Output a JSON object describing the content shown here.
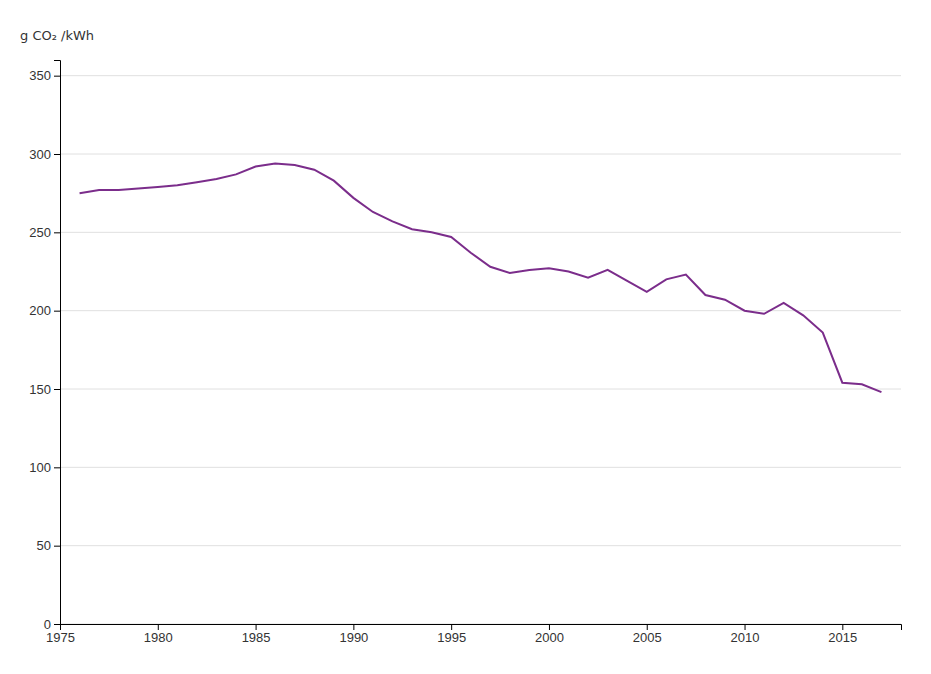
{
  "chart_data": {
    "type": "line",
    "ylabel": "g CO₂ /kWh",
    "x": [
      1976,
      1977,
      1978,
      1979,
      1980,
      1981,
      1982,
      1983,
      1984,
      1985,
      1986,
      1987,
      1988,
      1989,
      1990,
      1991,
      1992,
      1993,
      1994,
      1995,
      1996,
      1997,
      1998,
      1999,
      2000,
      2001,
      2002,
      2003,
      2004,
      2005,
      2006,
      2007,
      2008,
      2009,
      2010,
      2011,
      2012,
      2013,
      2014,
      2015,
      2016,
      2017
    ],
    "values": [
      275,
      277,
      277,
      278,
      279,
      280,
      282,
      284,
      287,
      292,
      294,
      293,
      290,
      283,
      272,
      263,
      257,
      252,
      250,
      247,
      237,
      228,
      224,
      226,
      227,
      225,
      221,
      226,
      219,
      212,
      220,
      223,
      210,
      207,
      200,
      198,
      205,
      197,
      186,
      154,
      153,
      148
    ],
    "color": "#7B2D8B",
    "xlim": [
      1975,
      2018
    ],
    "ylim": [
      0,
      360
    ],
    "xticks": [
      1975,
      1980,
      1985,
      1990,
      1995,
      2000,
      2005,
      2010,
      2015
    ],
    "yticks": [
      0,
      50,
      100,
      150,
      200,
      250,
      300,
      350
    ],
    "grid": true
  }
}
